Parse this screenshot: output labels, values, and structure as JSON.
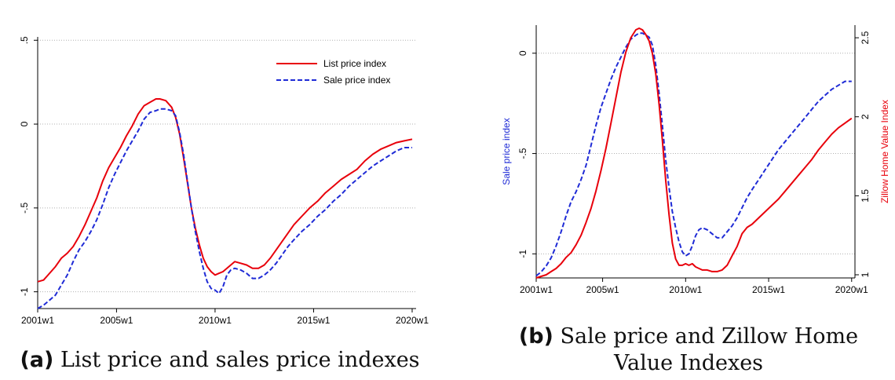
{
  "charts": [
    {
      "type": "line",
      "x_ticks": [
        "2001w1",
        "2005w1",
        "2010w1",
        "2015w1",
        "2020w1"
      ],
      "y_left_ticks": [
        ".5",
        "0",
        "-.5",
        "-1"
      ],
      "xlim": [
        2001,
        2020.2
      ],
      "ylim_left": [
        -1.1,
        0.52
      ],
      "legend": {
        "placement": "top-right",
        "entries": [
          "List price index",
          "Sale price index"
        ]
      },
      "grid": true,
      "series": [
        {
          "name": "List price index",
          "color": "#e8000b",
          "dash": "solid",
          "axis": "left",
          "x": [
            2001.0,
            2001.3,
            2001.6,
            2001.9,
            2002.2,
            2002.5,
            2002.8,
            2003.1,
            2003.4,
            2003.7,
            2004.0,
            2004.3,
            2004.6,
            2004.9,
            2005.2,
            2005.5,
            2005.8,
            2006.1,
            2006.4,
            2006.7,
            2007.0,
            2007.2,
            2007.5,
            2007.8,
            2008.0,
            2008.2,
            2008.4,
            2008.6,
            2008.8,
            2009.0,
            2009.2,
            2009.4,
            2009.6,
            2009.8,
            2010.0,
            2010.2,
            2010.4,
            2010.6,
            2010.8,
            2011.0,
            2011.3,
            2011.6,
            2011.9,
            2012.2,
            2012.5,
            2012.8,
            2013.1,
            2013.4,
            2013.7,
            2014.0,
            2014.4,
            2014.8,
            2015.2,
            2015.6,
            2016.0,
            2016.4,
            2016.8,
            2017.2,
            2017.6,
            2018.0,
            2018.4,
            2018.8,
            2019.2,
            2019.6,
            2020.0
          ],
          "y": [
            -0.94,
            -0.93,
            -0.89,
            -0.85,
            -0.8,
            -0.77,
            -0.73,
            -0.67,
            -0.6,
            -0.52,
            -0.44,
            -0.34,
            -0.26,
            -0.2,
            -0.14,
            -0.07,
            -0.01,
            0.06,
            0.11,
            0.13,
            0.15,
            0.15,
            0.14,
            0.1,
            0.04,
            -0.06,
            -0.2,
            -0.35,
            -0.5,
            -0.62,
            -0.72,
            -0.8,
            -0.85,
            -0.88,
            -0.9,
            -0.89,
            -0.88,
            -0.86,
            -0.84,
            -0.82,
            -0.83,
            -0.84,
            -0.86,
            -0.86,
            -0.84,
            -0.8,
            -0.75,
            -0.7,
            -0.65,
            -0.6,
            -0.55,
            -0.5,
            -0.46,
            -0.41,
            -0.37,
            -0.33,
            -0.3,
            -0.27,
            -0.22,
            -0.18,
            -0.15,
            -0.13,
            -0.11,
            -0.1,
            -0.09
          ]
        },
        {
          "name": "Sale price index",
          "color": "#1f2bd6",
          "dash": "dashed",
          "axis": "left",
          "x": [
            2001.0,
            2001.3,
            2001.6,
            2001.9,
            2002.2,
            2002.5,
            2002.8,
            2003.1,
            2003.4,
            2003.7,
            2004.0,
            2004.3,
            2004.6,
            2004.9,
            2005.2,
            2005.5,
            2005.8,
            2006.1,
            2006.4,
            2006.7,
            2007.0,
            2007.2,
            2007.5,
            2007.8,
            2008.0,
            2008.2,
            2008.4,
            2008.6,
            2008.8,
            2009.0,
            2009.2,
            2009.4,
            2009.6,
            2009.8,
            2010.0,
            2010.2,
            2010.4,
            2010.6,
            2010.8,
            2011.0,
            2011.3,
            2011.6,
            2011.9,
            2012.2,
            2012.5,
            2012.8,
            2013.1,
            2013.4,
            2013.7,
            2014.0,
            2014.4,
            2014.8,
            2015.2,
            2015.6,
            2016.0,
            2016.4,
            2016.8,
            2017.2,
            2017.6,
            2018.0,
            2018.4,
            2018.8,
            2019.2,
            2019.6,
            2020.0
          ],
          "y": [
            -1.1,
            -1.08,
            -1.05,
            -1.02,
            -0.96,
            -0.9,
            -0.82,
            -0.75,
            -0.7,
            -0.64,
            -0.57,
            -0.48,
            -0.38,
            -0.3,
            -0.23,
            -0.16,
            -0.1,
            -0.04,
            0.03,
            0.07,
            0.08,
            0.09,
            0.09,
            0.08,
            0.05,
            -0.05,
            -0.18,
            -0.34,
            -0.5,
            -0.64,
            -0.76,
            -0.86,
            -0.94,
            -0.98,
            -0.99,
            -1.01,
            -0.97,
            -0.9,
            -0.87,
            -0.86,
            -0.87,
            -0.89,
            -0.92,
            -0.92,
            -0.9,
            -0.87,
            -0.83,
            -0.78,
            -0.73,
            -0.69,
            -0.64,
            -0.6,
            -0.55,
            -0.51,
            -0.46,
            -0.42,
            -0.37,
            -0.33,
            -0.29,
            -0.25,
            -0.22,
            -0.19,
            -0.16,
            -0.14,
            -0.14
          ]
        }
      ]
    },
    {
      "type": "line",
      "x_ticks": [
        "2001w1",
        "2005w1",
        "2010w1",
        "2015w1",
        "2020w1"
      ],
      "y_left_ticks": [
        "0",
        "-.5",
        "-1"
      ],
      "y_right_ticks": [
        "2.5",
        "2",
        "1.5",
        "1"
      ],
      "ylabel": "Sale price index",
      "y2label": "Zillow Home Value Index",
      "xlim": [
        2001,
        2020.2
      ],
      "ylim_left": [
        -1.12,
        0.14
      ],
      "ylim_right": [
        0.98,
        2.58
      ],
      "grid": true,
      "series": [
        {
          "name": "Sale price index",
          "color": "#1f2bd6",
          "dash": "dashed",
          "axis": "left",
          "x": [
            2001.0,
            2001.3,
            2001.6,
            2001.9,
            2002.2,
            2002.5,
            2002.8,
            2003.1,
            2003.4,
            2003.7,
            2004.0,
            2004.3,
            2004.6,
            2004.9,
            2005.2,
            2005.5,
            2005.8,
            2006.1,
            2006.4,
            2006.7,
            2007.0,
            2007.2,
            2007.4,
            2007.6,
            2007.8,
            2008.0,
            2008.2,
            2008.4,
            2008.6,
            2008.8,
            2009.0,
            2009.2,
            2009.4,
            2009.6,
            2009.8,
            2010.0,
            2010.2,
            2010.4,
            2010.6,
            2010.8,
            2011.0,
            2011.3,
            2011.6,
            2011.9,
            2012.2,
            2012.5,
            2012.8,
            2013.1,
            2013.4,
            2013.7,
            2014.0,
            2014.4,
            2014.8,
            2015.2,
            2015.6,
            2016.0,
            2016.4,
            2016.8,
            2017.2,
            2017.6,
            2018.0,
            2018.4,
            2018.8,
            2019.2,
            2019.6,
            2020.0
          ],
          "y": [
            -1.11,
            -1.09,
            -1.06,
            -1.02,
            -0.96,
            -0.89,
            -0.81,
            -0.74,
            -0.69,
            -0.63,
            -0.56,
            -0.46,
            -0.36,
            -0.27,
            -0.2,
            -0.13,
            -0.07,
            -0.02,
            0.03,
            0.07,
            0.09,
            0.1,
            0.1,
            0.09,
            0.08,
            0.04,
            -0.06,
            -0.2,
            -0.36,
            -0.53,
            -0.67,
            -0.79,
            -0.87,
            -0.94,
            -0.99,
            -1.01,
            -1.0,
            -0.96,
            -0.91,
            -0.88,
            -0.87,
            -0.88,
            -0.9,
            -0.92,
            -0.92,
            -0.89,
            -0.86,
            -0.82,
            -0.77,
            -0.72,
            -0.68,
            -0.63,
            -0.58,
            -0.53,
            -0.48,
            -0.44,
            -0.4,
            -0.36,
            -0.32,
            -0.28,
            -0.24,
            -0.21,
            -0.18,
            -0.16,
            -0.14,
            -0.14
          ]
        },
        {
          "name": "Zillow Home Value Index",
          "color": "#e8000b",
          "dash": "solid",
          "axis": "right",
          "x": [
            2001.0,
            2001.3,
            2001.6,
            2001.9,
            2002.2,
            2002.5,
            2002.8,
            2003.1,
            2003.4,
            2003.7,
            2004.0,
            2004.3,
            2004.6,
            2004.9,
            2005.2,
            2005.5,
            2005.8,
            2006.1,
            2006.4,
            2006.7,
            2007.0,
            2007.2,
            2007.4,
            2007.6,
            2007.8,
            2008.0,
            2008.2,
            2008.4,
            2008.6,
            2008.8,
            2009.0,
            2009.2,
            2009.4,
            2009.6,
            2009.8,
            2010.0,
            2010.2,
            2010.4,
            2010.6,
            2010.8,
            2011.0,
            2011.3,
            2011.6,
            2011.9,
            2012.2,
            2012.5,
            2012.8,
            2013.1,
            2013.4,
            2013.7,
            2014.0,
            2014.4,
            2014.8,
            2015.2,
            2015.6,
            2016.0,
            2016.4,
            2016.8,
            2017.2,
            2017.6,
            2018.0,
            2018.4,
            2018.8,
            2019.2,
            2019.6,
            2020.0
          ],
          "y": [
            0.98,
            0.99,
            1.0,
            1.02,
            1.04,
            1.07,
            1.11,
            1.14,
            1.19,
            1.25,
            1.33,
            1.42,
            1.53,
            1.66,
            1.8,
            1.96,
            2.12,
            2.28,
            2.41,
            2.5,
            2.55,
            2.56,
            2.55,
            2.52,
            2.48,
            2.4,
            2.27,
            2.08,
            1.85,
            1.6,
            1.38,
            1.2,
            1.1,
            1.06,
            1.06,
            1.07,
            1.06,
            1.07,
            1.05,
            1.04,
            1.03,
            1.03,
            1.02,
            1.02,
            1.03,
            1.06,
            1.12,
            1.18,
            1.26,
            1.3,
            1.32,
            1.36,
            1.4,
            1.44,
            1.48,
            1.53,
            1.58,
            1.63,
            1.68,
            1.73,
            1.79,
            1.84,
            1.89,
            1.93,
            1.96,
            1.99
          ]
        }
      ]
    }
  ],
  "captions": [
    {
      "label": "(a)",
      "text": "List price and sales price indexes"
    },
    {
      "label": "(b)",
      "text": "Sale price and Zillow Home Value Indexes"
    }
  ]
}
